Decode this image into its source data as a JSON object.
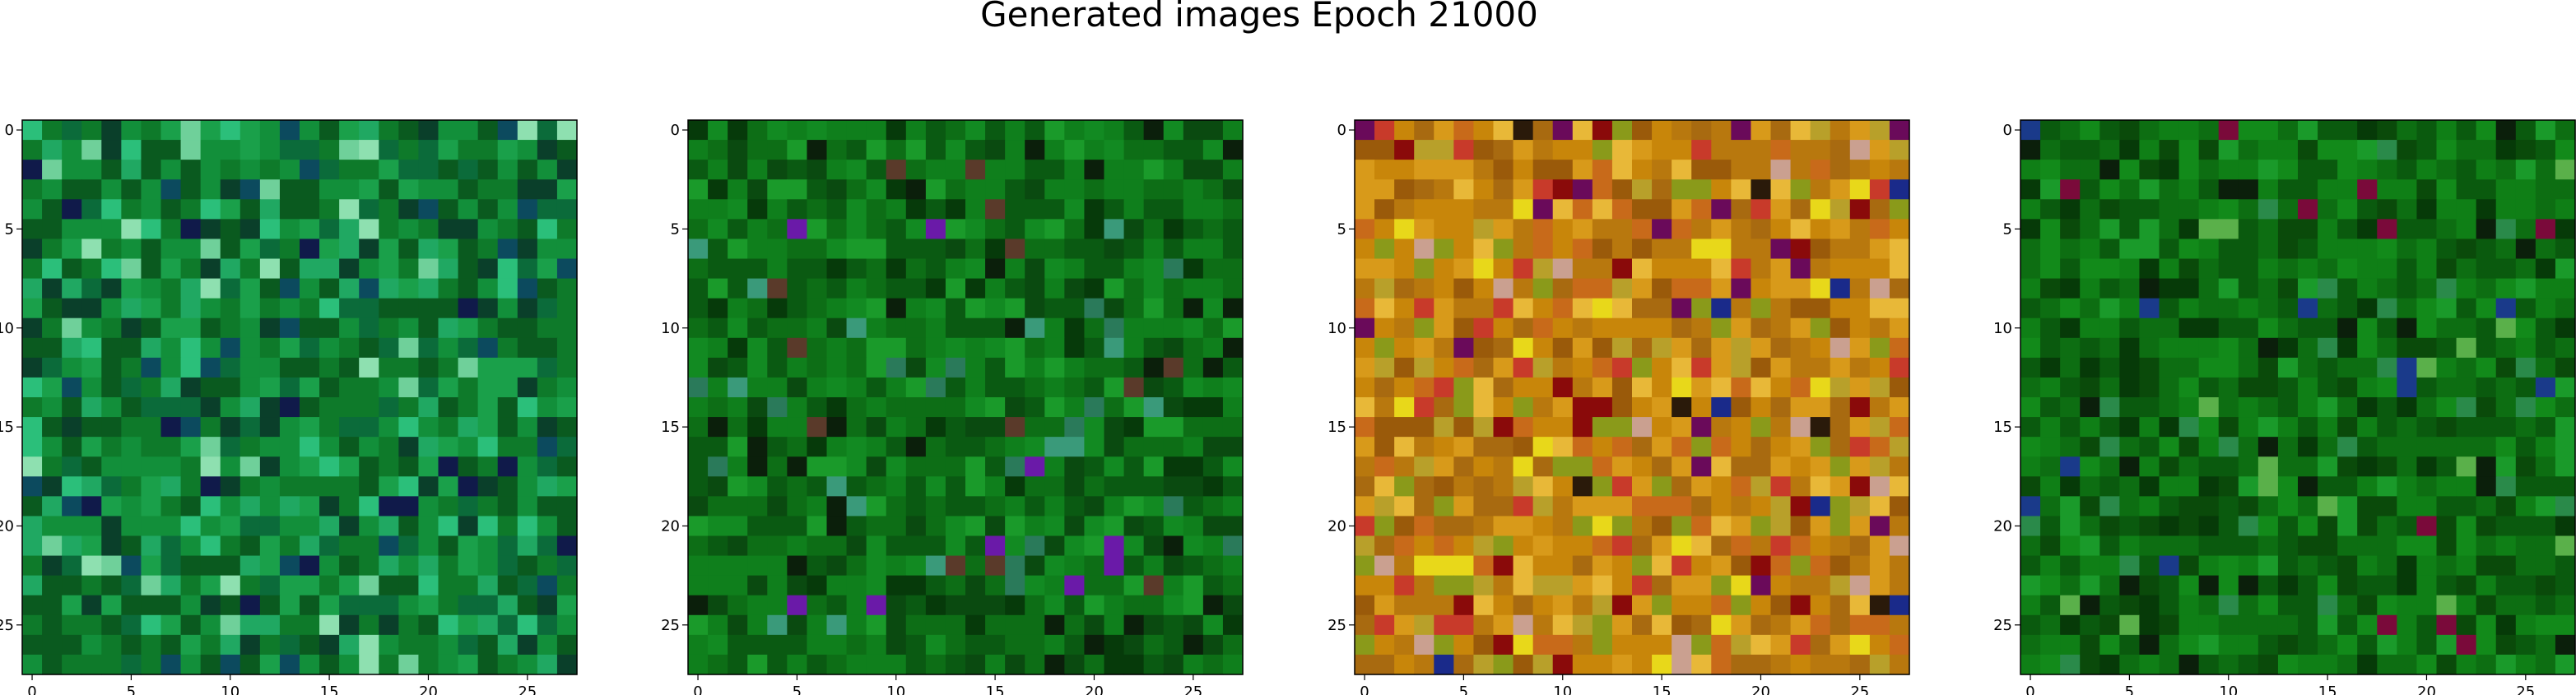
{
  "chart_data": {
    "type": "heatmap",
    "title": "Generated images Epoch 21000",
    "grid": false,
    "panels": [
      {
        "name": "image-1",
        "rows": 28,
        "cols": 28,
        "xlim": [
          -0.5,
          27.5
        ],
        "ylim": [
          27.5,
          -0.5
        ],
        "xticks": [
          0,
          5,
          10,
          15,
          20,
          25
        ],
        "yticks": [
          0,
          5,
          10,
          15,
          20,
          25
        ],
        "palette": [
          "#0a5a1f",
          "#0e7a2a",
          "#128f3a",
          "#1aa04a",
          "#0b6b3a",
          "#20a862",
          "#2bbf7a",
          "#0a3f2a",
          "#0c4a5e",
          "#101a4a",
          "#6fd09a",
          "#8ee0b0"
        ],
        "weights": [
          18,
          18,
          14,
          10,
          10,
          8,
          5,
          6,
          4,
          2,
          3,
          2
        ]
      },
      {
        "name": "image-2",
        "rows": 28,
        "cols": 28,
        "xlim": [
          -0.5,
          27.5
        ],
        "ylim": [
          27.5,
          -0.5
        ],
        "xticks": [
          0,
          5,
          10,
          15,
          20,
          25
        ],
        "yticks": [
          0,
          5,
          10,
          15,
          20,
          25
        ],
        "palette": [
          "#0a5a12",
          "#0d6e16",
          "#0f7f1c",
          "#128a22",
          "#0a4a10",
          "#1a9a2a",
          "#063a0a",
          "#0b1f0b",
          "#2a7a5a",
          "#3a9a7a",
          "#5a3a2a",
          "#6a1aa8"
        ],
        "weights": [
          20,
          20,
          16,
          10,
          12,
          6,
          6,
          4,
          2,
          2,
          1,
          1
        ]
      },
      {
        "name": "image-3",
        "rows": 28,
        "cols": 28,
        "xlim": [
          -0.5,
          27.5
        ],
        "ylim": [
          27.5,
          -0.5
        ],
        "xticks": [
          0,
          5,
          10,
          15,
          20,
          25
        ],
        "yticks": [
          0,
          5,
          10,
          15,
          20,
          25
        ],
        "palette": [
          "#c8860a",
          "#b8780e",
          "#d89a1a",
          "#a86a10",
          "#e8b838",
          "#c86a1a",
          "#9a5a0a",
          "#b8a02a",
          "#8a9a1a",
          "#c83a2a",
          "#8a0a0a",
          "#6a0a5a",
          "#e8d81a",
          "#caa090",
          "#2a1a0a",
          "#1a2a8a"
        ],
        "weights": [
          16,
          14,
          12,
          10,
          8,
          8,
          6,
          6,
          5,
          4,
          3,
          2,
          3,
          2,
          1,
          1
        ]
      },
      {
        "name": "image-4",
        "rows": 28,
        "cols": 28,
        "xlim": [
          -0.5,
          27.5
        ],
        "ylim": [
          27.5,
          -0.5
        ],
        "xticks": [
          0,
          5,
          10,
          15,
          20,
          25
        ],
        "yticks": [
          0,
          5,
          10,
          15,
          20,
          25
        ],
        "palette": [
          "#0a5a0e",
          "#0d6e12",
          "#0f7f16",
          "#128a1a",
          "#0a4a0a",
          "#1a9a2a",
          "#063a08",
          "#0b1f0b",
          "#2a8a4a",
          "#5ab04a",
          "#7a0a3a",
          "#1a3a8a"
        ],
        "weights": [
          20,
          20,
          16,
          10,
          12,
          6,
          6,
          3,
          3,
          2,
          1,
          1
        ]
      }
    ]
  }
}
